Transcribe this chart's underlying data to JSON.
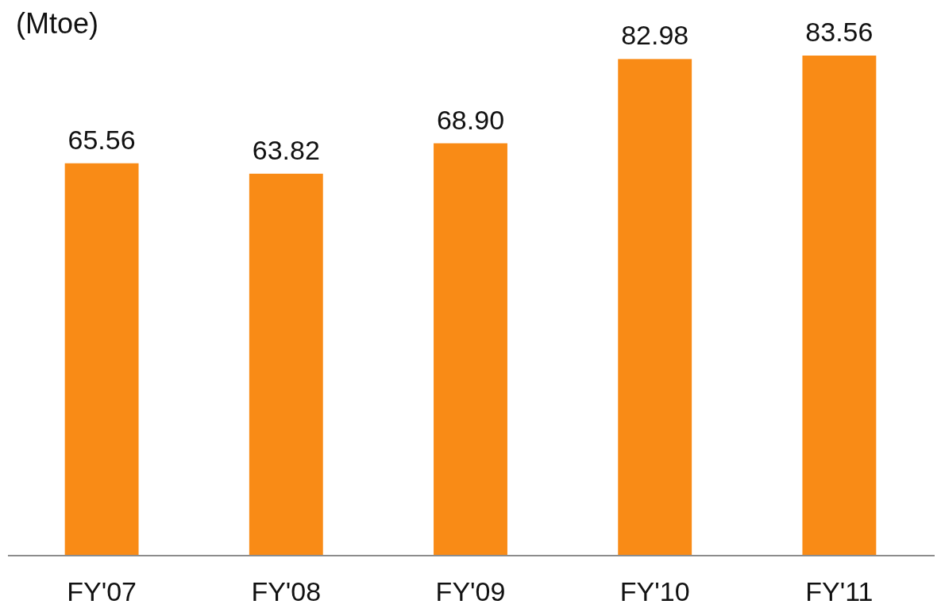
{
  "chart_data": {
    "type": "bar",
    "ylabel": "(Mtoe)",
    "categories": [
      "FY'07",
      "FY'08",
      "FY'09",
      "FY'10",
      "FY'11"
    ],
    "values": [
      65.56,
      63.82,
      68.9,
      82.98,
      83.56
    ],
    "value_labels": [
      "65.56",
      "63.82",
      "68.90",
      "82.98",
      "83.56"
    ],
    "color": "#f98b16"
  }
}
